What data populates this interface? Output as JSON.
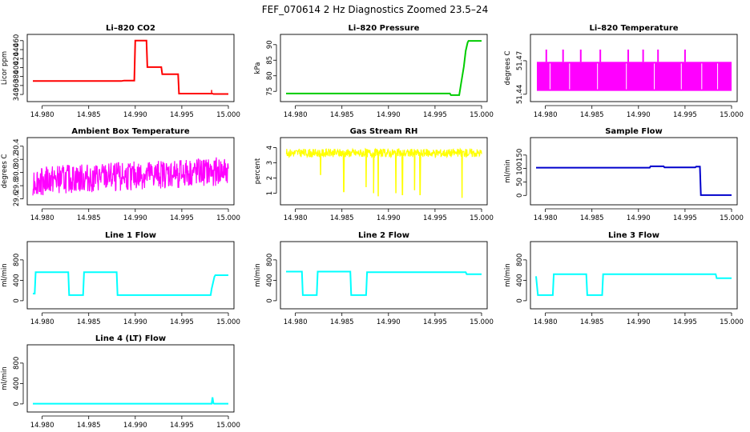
{
  "title": "FEF_070614  2 Hz Diagnostics Zoomed 23.5–24",
  "chart_data": [
    {
      "type": "line",
      "title": "Li–820 CO2",
      "ylabel": "Licor ppm",
      "color": "#ff0000",
      "xlim": [
        14.979,
        15.0
      ],
      "ylim": [
        333,
        465
      ],
      "xticks": [
        "14.980",
        "14.985",
        "14.990",
        "14.995",
        "15.000"
      ],
      "yticks": [
        "340",
        "360",
        "380",
        "400",
        "420",
        "440",
        "460"
      ],
      "series": [
        {
          "x": [
            14.979,
            14.9885,
            14.9888,
            14.9899,
            14.99,
            14.9912,
            14.9913,
            14.9928,
            14.9929,
            14.9946,
            14.9947,
            14.9983,
            14.9984,
            15.0
          ],
          "y": [
            370,
            370,
            371,
            371,
            460,
            460,
            401,
            401,
            385,
            385,
            342,
            342,
            341,
            341
          ]
        }
      ],
      "spikes": [
        {
          "x": 14.9982,
          "y": 350
        }
      ]
    },
    {
      "type": "line",
      "title": "Li–820 Pressure",
      "ylabel": "kPa",
      "color": "#00cc00",
      "xlim": [
        14.979,
        15.0
      ],
      "ylim": [
        73,
        92
      ],
      "xticks": [
        "14.980",
        "14.985",
        "14.990",
        "14.995",
        "15.000"
      ],
      "yticks": [
        "75",
        "80",
        "85",
        "90"
      ],
      "series": [
        {
          "x": [
            14.979,
            14.9966,
            14.9967,
            14.9976,
            14.9978,
            14.9981,
            14.9983,
            14.9985,
            14.9986,
            15.0
          ],
          "y": [
            74.3,
            74.3,
            73.8,
            73.8,
            77.5,
            83,
            88,
            90.7,
            91.2,
            91.2
          ]
        }
      ]
    },
    {
      "type": "line",
      "title": "Li–820 Temperature",
      "ylabel": "degrees C",
      "color": "#ff00ff",
      "xlim": [
        14.979,
        15.0
      ],
      "ylim": [
        51.437,
        51.49
      ],
      "xticks": [
        "14.980",
        "14.985",
        "14.990",
        "14.995",
        "15.000"
      ],
      "yticks": [
        "51.44",
        "51.47"
      ],
      "band": [
        51.443,
        51.469
      ],
      "gaps": [
        14.9805,
        14.9826,
        14.9856,
        14.9887,
        14.9917,
        14.9946,
        14.9968,
        14.9985
      ],
      "spikes": [
        14.9801,
        14.9819,
        14.9838,
        14.9859,
        14.9889,
        14.9905,
        14.9921,
        14.995
      ],
      "spike_level": 51.48
    },
    {
      "type": "line",
      "title": "Ambient Box Temperature",
      "ylabel": "degrees C",
      "color": "#ff00ff",
      "xlim": [
        14.979,
        15.0
      ],
      "ylim": [
        29.57,
        30.47
      ],
      "xticks": [
        "14.980",
        "14.985",
        "14.990",
        "14.995",
        "15.000"
      ],
      "yticks": [
        "29.6",
        "29.8",
        "30.0",
        "30.2",
        "30.4"
      ],
      "baseline": [
        [
          14.979,
          29.87
        ],
        [
          14.99,
          29.95
        ],
        [
          15.0,
          30.02
        ]
      ],
      "noise": 0.22
    },
    {
      "type": "line",
      "title": "Gas Stream RH",
      "ylabel": "percent",
      "color": "#ffff00",
      "xlim": [
        14.979,
        15.0
      ],
      "ylim": [
        0.5,
        4.4
      ],
      "xticks": [
        "14.980",
        "14.985",
        "14.990",
        "14.995",
        "15.000"
      ],
      "yticks": [
        "1",
        "2",
        "3",
        "4"
      ],
      "baseline": [
        [
          14.979,
          3.65
        ],
        [
          15.0,
          3.65
        ]
      ],
      "noise": 0.28,
      "dips": [
        [
          14.9827,
          2.2
        ],
        [
          14.9852,
          1.1
        ],
        [
          14.9876,
          1.4
        ],
        [
          14.9884,
          1.0
        ],
        [
          14.9889,
          0.8
        ],
        [
          14.9908,
          1.0
        ],
        [
          14.9915,
          0.9
        ],
        [
          14.9928,
          1.2
        ],
        [
          14.9934,
          0.9
        ],
        [
          14.9979,
          0.7
        ]
      ]
    },
    {
      "type": "line",
      "title": "Sample Flow",
      "ylabel": "ml/min",
      "color": "#0000cc",
      "xlim": [
        14.979,
        15.0
      ],
      "ylim": [
        -20,
        200
      ],
      "xticks": [
        "14.980",
        "14.985",
        "14.990",
        "14.995",
        "15.000"
      ],
      "yticks": [
        "0",
        "50",
        "100",
        "150"
      ],
      "series": [
        {
          "x": [
            14.979,
            14.9912,
            14.9913,
            14.9927,
            14.9928,
            14.9961,
            14.9962,
            14.9966,
            14.9967,
            15.0
          ],
          "y": [
            103,
            103,
            108,
            108,
            104,
            104,
            107,
            107,
            1,
            1
          ]
        }
      ]
    },
    {
      "type": "line",
      "title": "Line 1 Flow",
      "ylabel": "ml/min",
      "color": "#00ffff",
      "xlim": [
        14.979,
        15.0
      ],
      "ylim": [
        -80,
        1080
      ],
      "xticks": [
        "14.980",
        "14.985",
        "14.990",
        "14.995",
        "15.000"
      ],
      "yticks": [
        "0",
        "400",
        "800"
      ],
      "series": [
        {
          "x": [
            14.979,
            14.9792,
            14.9793,
            14.9828,
            14.9829,
            14.9844,
            14.9845,
            14.988,
            14.9881,
            14.9981,
            14.9982,
            14.9985,
            14.9986,
            15.0
          ],
          "y": [
            140,
            140,
            560,
            560,
            110,
            110,
            560,
            560,
            110,
            110,
            230,
            470,
            500,
            500
          ]
        }
      ]
    },
    {
      "type": "line",
      "title": "Line 2 Flow",
      "ylabel": "ml/min",
      "color": "#00ffff",
      "xlim": [
        14.979,
        15.0
      ],
      "ylim": [
        -80,
        1080
      ],
      "xticks": [
        "14.980",
        "14.985",
        "14.990",
        "14.995",
        "15.000"
      ],
      "yticks": [
        "0",
        "400",
        "800"
      ],
      "series": [
        {
          "x": [
            14.979,
            14.9807,
            14.9808,
            14.9823,
            14.9824,
            14.9859,
            14.986,
            14.9876,
            14.9877,
            14.9983,
            14.9984,
            15.0
          ],
          "y": [
            570,
            570,
            110,
            110,
            570,
            570,
            110,
            110,
            560,
            560,
            520,
            520
          ]
        }
      ]
    },
    {
      "type": "line",
      "title": "Line 3 Flow",
      "ylabel": "ml/min",
      "color": "#00ffff",
      "xlim": [
        14.979,
        15.0
      ],
      "ylim": [
        -80,
        1080
      ],
      "xticks": [
        "14.980",
        "14.985",
        "14.990",
        "14.995",
        "15.000"
      ],
      "yticks": [
        "0",
        "400",
        "800"
      ],
      "series": [
        {
          "x": [
            14.979,
            14.9792,
            14.9793,
            14.9808,
            14.9809,
            14.9844,
            14.9845,
            14.9861,
            14.9862,
            14.9983,
            14.9984,
            15.0
          ],
          "y": [
            480,
            110,
            110,
            110,
            520,
            520,
            110,
            110,
            520,
            520,
            440,
            440
          ]
        }
      ]
    },
    {
      "type": "line",
      "title": "Line 4 (LT) Flow",
      "ylabel": "ml/min",
      "color": "#00ffff",
      "xlim": [
        14.979,
        15.0
      ],
      "ylim": [
        -80,
        1080
      ],
      "xticks": [
        "14.980",
        "14.985",
        "14.990",
        "14.995",
        "15.000"
      ],
      "yticks": [
        "0",
        "400",
        "800"
      ],
      "series": [
        {
          "x": [
            14.979,
            14.9982,
            14.9983,
            14.9984,
            14.9985,
            15.0
          ],
          "y": [
            5,
            5,
            130,
            10,
            5,
            5
          ]
        }
      ]
    }
  ]
}
